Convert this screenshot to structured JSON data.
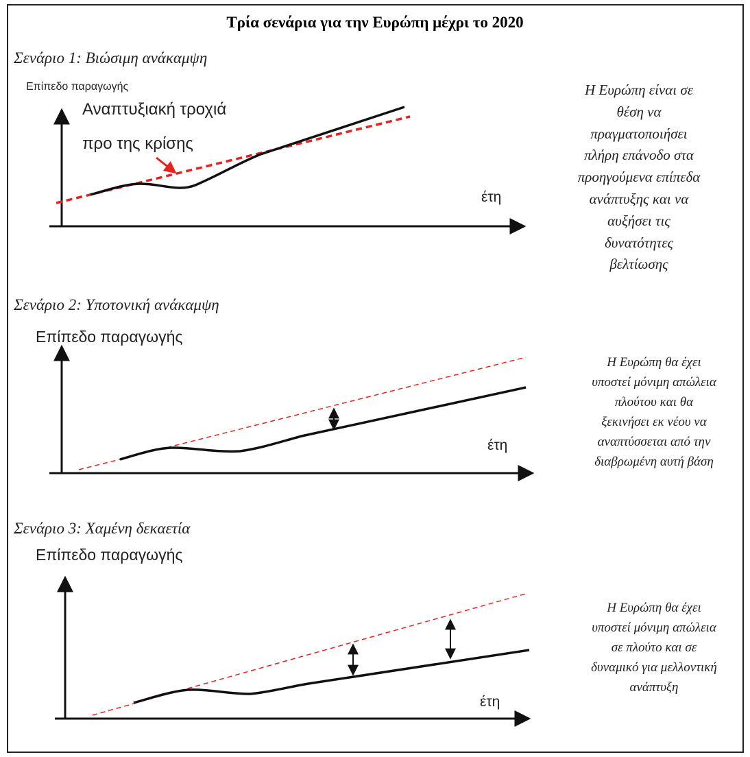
{
  "title": "Τρία σενάρια για την Ευρώπη μέχρι το 2020",
  "scenarios": [
    {
      "heading": "Σενάριο 1: Βιώσιμη ανάκαμψη",
      "ylabel": "Επίπεδο παραγωγής",
      "xlabel": "έτη",
      "trend_label_line1": "Αναπτυξιακή τροχιά",
      "trend_label_line2": "προ της κρίσης",
      "description": "Η Ευρώπη είναι σε\nθέση να\nπραγματοποιήσει\nπλήρη επάνοδο στα\nπροηγούμενα επίπεδα\nανάπτυξης και να\nαυξήσει τις\nδυνατότητες\nβελτίωσης"
    },
    {
      "heading": "Σενάριο 2: Υποτονική ανάκαμψη",
      "ylabel": "Επίπεδο παραγωγής",
      "xlabel": "έτη",
      "description": "Η Ευρώπη θα έχει\nυποστεί μόνιμη απώλεια\nπλούτου και θα\nξεκινήσει εκ νέου να\nαναπτύσσεται από την\nδιαβρωμένη αυτή βάση"
    },
    {
      "heading": "Σενάριο 3: Χαμένη δεκαετία",
      "ylabel": "Επίπεδο παραγωγής",
      "xlabel": "έτη",
      "description": "Η Ευρώπη θα έχει\nυποστεί μόνιμη απώλεια\nσε πλούτο και σε\nδυναμικό για μελλοντική\nανάπτυξη"
    }
  ],
  "colors": {
    "trend_line": "#e8231e",
    "output_line": "#111111",
    "axes": "#111111"
  }
}
